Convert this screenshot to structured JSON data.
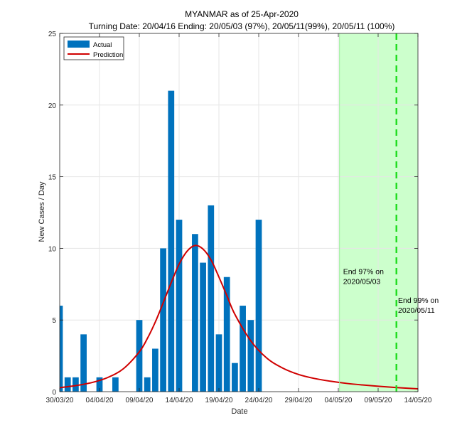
{
  "chart_data": {
    "type": "bar",
    "title": "MYANMAR as of 25-Apr-2020",
    "subtitle": "Turning Date: 20/04/16  Ending: 20/05/03 (97%), 20/05/11(99%), 20/05/11 (100%)",
    "xlabel": "Date",
    "ylabel": "New Cases / Day",
    "ylim": [
      0,
      25
    ],
    "yticks": [
      0,
      5,
      10,
      15,
      20,
      25
    ],
    "xlim": [
      0,
      45
    ],
    "xticks": [
      {
        "day": 0,
        "label": "30/03/20"
      },
      {
        "day": 5,
        "label": "04/04/20"
      },
      {
        "day": 10,
        "label": "09/04/20"
      },
      {
        "day": 15,
        "label": "14/04/20"
      },
      {
        "day": 20,
        "label": "19/04/20"
      },
      {
        "day": 25,
        "label": "24/04/20"
      },
      {
        "day": 30,
        "label": "29/04/20"
      },
      {
        "day": 35,
        "label": "04/05/20"
      },
      {
        "day": 40,
        "label": "09/05/20"
      },
      {
        "day": 45,
        "label": "14/05/20"
      }
    ],
    "grid": true,
    "legend_position": "top-left",
    "series": [
      {
        "name": "Actual",
        "type": "bar",
        "color": "#0072BD",
        "days": [
          0,
          1,
          2,
          3,
          5,
          7,
          10,
          11,
          12,
          13,
          14,
          15,
          17,
          18,
          19,
          20,
          21,
          22,
          23,
          24,
          25
        ],
        "values": [
          6,
          1,
          1,
          4,
          1,
          1,
          5,
          1,
          3,
          10,
          21,
          12,
          11,
          9,
          13,
          4,
          8,
          2,
          6,
          5,
          12
        ]
      },
      {
        "name": "Prediction",
        "type": "line",
        "color": "#D00000",
        "peak_day": 17,
        "peak_value": 10.2,
        "days": [
          0,
          2,
          4,
          6,
          8,
          10,
          11,
          12,
          13,
          14,
          15,
          16,
          17,
          18,
          19,
          20,
          21,
          22,
          24,
          26,
          28,
          30,
          32,
          34,
          36,
          38,
          40,
          42,
          44,
          45
        ],
        "values": [
          0.28,
          0.42,
          0.63,
          0.98,
          1.6,
          2.78,
          3.7,
          4.85,
          6.2,
          7.6,
          8.9,
          9.8,
          10.2,
          9.95,
          9.2,
          8.0,
          6.7,
          5.4,
          3.55,
          2.35,
          1.65,
          1.2,
          0.92,
          0.73,
          0.58,
          0.47,
          0.38,
          0.3,
          0.23,
          0.2
        ]
      }
    ],
    "shaded_region": {
      "from_day": 35.15,
      "to_day": 45,
      "color": "#CCFFCC"
    },
    "vertical_lines": [
      {
        "day": 35.15,
        "style": "thin",
        "color": "#99EE99"
      },
      {
        "day": 42.3,
        "style": "dashed",
        "color": "#22DD22"
      }
    ],
    "annotations": [
      {
        "lines": [
          "End 97% on",
          "2020/05/03"
        ],
        "day": 35.6,
        "value": 8.0
      },
      {
        "lines": [
          "End 99% on",
          "2020/05/11"
        ],
        "day": 42.5,
        "value": 6.0
      }
    ]
  }
}
